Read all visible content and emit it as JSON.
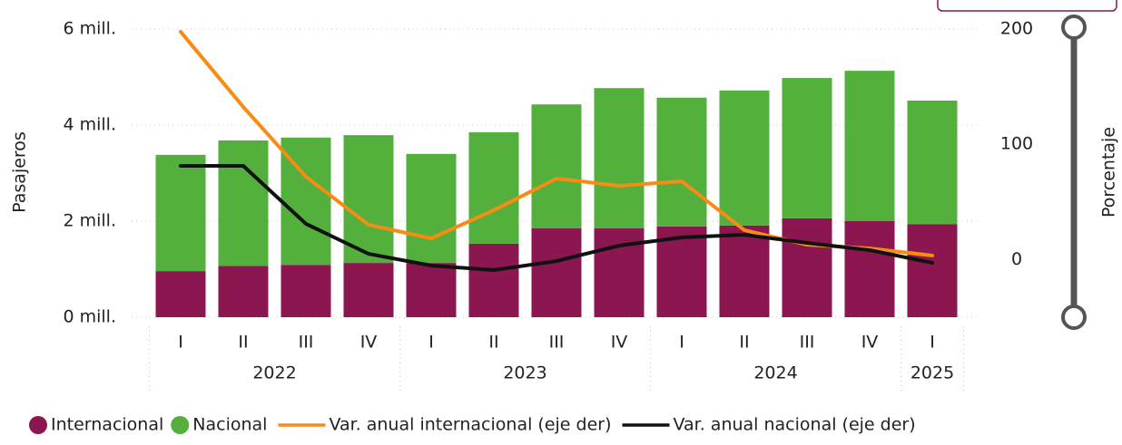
{
  "chart_data": {
    "type": "bar",
    "stacked": true,
    "ylabel": "Pasajeros",
    "y2label": "Porcentaje",
    "categories": [
      "I",
      "II",
      "III",
      "IV",
      "I",
      "II",
      "III",
      "IV",
      "I",
      "II",
      "III",
      "IV",
      "I"
    ],
    "category_groups": [
      {
        "label": "2022",
        "size": 4
      },
      {
        "label": "2023",
        "size": 4
      },
      {
        "label": "2024",
        "size": 4
      },
      {
        "label": "2025",
        "size": 1
      }
    ],
    "ylim": [
      0,
      6000000
    ],
    "yticks": [
      {
        "value": 0,
        "label": "0 mill."
      },
      {
        "value": 2000000,
        "label": "2 mill."
      },
      {
        "value": 4000000,
        "label": "4 mill."
      },
      {
        "value": 6000000,
        "label": "6 mill."
      }
    ],
    "y2lim": [
      -50,
      200
    ],
    "y2ticks": [
      0,
      100,
      200
    ],
    "grid": true,
    "series": [
      {
        "name": "Internacional",
        "type": "bar",
        "color": "#8b1650",
        "values": [
          960000,
          1070000,
          1090000,
          1130000,
          1130000,
          1530000,
          1850000,
          1850000,
          1890000,
          1910000,
          2060000,
          2000000,
          1940000
        ]
      },
      {
        "name": "Nacional",
        "type": "bar",
        "color": "#53b03c",
        "values": [
          2420000,
          2610000,
          2650000,
          2660000,
          2270000,
          2320000,
          2580000,
          2920000,
          2680000,
          2810000,
          2920000,
          3130000,
          2570000
        ]
      },
      {
        "name": "Var. anual internacional (eje der)",
        "type": "line",
        "axis": "y2",
        "color": "#f78c14",
        "values": [
          197.6,
          132.4,
          71.9,
          30.2,
          18.4,
          42.8,
          70.3,
          64,
          67.9,
          25.5,
          12.9,
          9.7,
          3.5
        ]
      },
      {
        "name": "Var. anual nacional (eje der)",
        "type": "line",
        "axis": "y2",
        "color": "#111111",
        "values": [
          81.3,
          81.3,
          31,
          5,
          -5.2,
          -9.1,
          -1.3,
          12.1,
          19.2,
          21.5,
          14.5,
          8.2,
          -2.8
        ]
      }
    ]
  }
}
